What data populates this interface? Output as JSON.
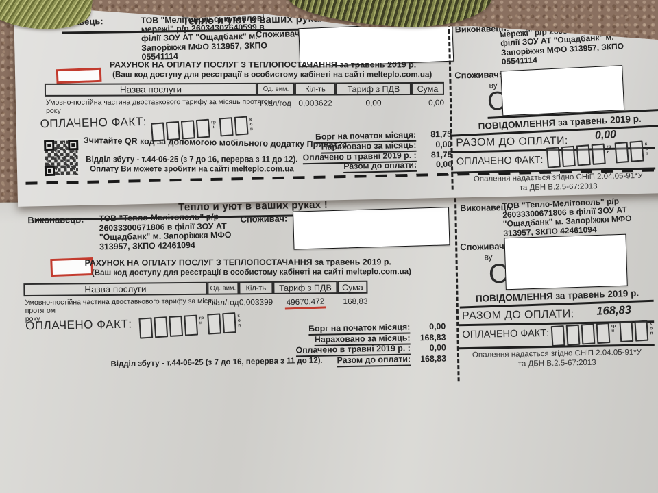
{
  "colors": {
    "annotation_red": "#c23b2e",
    "paper_top": "#dbdad7",
    "paper_bottom": "#d7d6d2",
    "carpet": "#8a7060",
    "fabric_olive": "#8f9455"
  },
  "bill_top": {
    "slogan": "Тепло и уют в ваших руках !",
    "executor_label": "Виконавець:",
    "executor_lines": [
      "ТОВ \"Мелітопольські теплові",
      "мережі\" р/р 26034302640599 в",
      "філії ЗОУ АТ \"Ощадбанк\" м.",
      "Запоріжжя МФО 313957, ЗКПО",
      "05541114"
    ],
    "consumer_label": "Споживач:",
    "invoice_title": "РАХУНОК НА ОПЛАТУ ПОСЛУГ З ТЕПЛОПОСТАЧАННЯ за травень 2019 р.",
    "invoice_subtitle": "(Ваш код доступу для реєстрації в особистому кабінеті на сайті melteplo.com.ua)",
    "table": {
      "col_service": "Назва послуги",
      "col_unit": "Од. вим.",
      "col_qty": "Кіл-ть",
      "col_tariff": "Тариф з ПДВ",
      "col_sum": "Сума",
      "row_service_line1": "Умовно-постійна частина двоставкового тарифу за місяць протягом",
      "row_service_line2": "року",
      "row_unit": "Гкал/год",
      "row_qty": "0,003622",
      "row_tariff": "0,00",
      "row_sum": "0,00"
    },
    "paid_fact_label": "ОПЛАЧЕНО ФАКТ:",
    "uah": "грн",
    "kop": "коп",
    "qr_hint": "Зчитайте QR код за допомогою мобільного додатку Приват24",
    "summary": [
      {
        "label": "Борг на початок місяця:",
        "value": "81,75"
      },
      {
        "label": "Нараховано за місяць:",
        "value": "0,00"
      },
      {
        "label": "Оплачено в травні 2019 р. :",
        "value": "81,75"
      },
      {
        "label": "Разом до оплати:",
        "value": "0,00"
      }
    ],
    "sales_dept_line": "Відділ збуту - т.44-06-25 (з 7 до 16, перерва з 11 до 12).",
    "pay_online_line": "Оплату Ви можете зробити на сайті melteplo.com.ua",
    "stub": {
      "notice_title": "ПОВІДОМЛЕННЯ за травень 2019 р.",
      "total_label": "РАЗОМ ДО ОПЛАТИ:",
      "total_value": "0,00",
      "consumer_partial": "ву",
      "big_letter": "С",
      "note_line1": "Опалення надається згідно СНіП 2.04.05-91*У",
      "note_line2": "та ДБН В.2.5-67:2013"
    }
  },
  "bill_bottom": {
    "slogan": "Тепло и уют в ваших руках !",
    "executor_label": "Виконавець:",
    "executor_lines": [
      "ТОВ \"Тепло-Мелітополь\" р/р",
      "26033300671806 в філії ЗОУ АТ",
      "\"Ощадбанк\" м. Запоріжжя МФО",
      "313957, ЗКПО 42461094"
    ],
    "consumer_label": "Споживач:",
    "invoice_title": "РАХУНОК НА ОПЛАТУ ПОСЛУГ З ТЕПЛОПОСТАЧАННЯ за травень 2019 р.",
    "invoice_subtitle": "(Ваш код доступу для реєстрації в особистому кабінеті на сайті melteplo.com.ua)",
    "table": {
      "col_service": "Назва послуги",
      "col_unit": "Од. вим.",
      "col_qty": "Кіл-ть",
      "col_tariff": "Тариф з ПДВ",
      "col_sum": "Сума",
      "row_service_line1": "Умовно-постійна частина двоставкового тарифу за місяць протягом",
      "row_service_line2": "року",
      "row_unit": "Гкал/год",
      "row_qty": "0,003399",
      "row_tariff": "49670,472",
      "row_sum": "168,83"
    },
    "paid_fact_label": "ОПЛАЧЕНО ФАКТ:",
    "uah": "грн",
    "kop": "коп",
    "summary": [
      {
        "label": "Борг на початок місяця:",
        "value": "0,00"
      },
      {
        "label": "Нараховано за місяць:",
        "value": "168,83"
      },
      {
        "label": "Оплачено в травні 2019 р. :",
        "value": "0,00"
      },
      {
        "label": "Разом до оплати:",
        "value": "168,83"
      }
    ],
    "sales_dept_line": "Відділ збуту - т.44-06-25 (з 7 до 16, перерва з 11 до 12).",
    "stub": {
      "notice_title": "ПОВІДОМЛЕННЯ за травень 2019 р.",
      "total_label": "РАЗОМ ДО ОПЛАТИ:",
      "total_value": "168,83",
      "consumer_partial": "ву",
      "big_letter": "С",
      "note_line1": "Опалення надається згідно СНіП 2.04.05-91*У",
      "note_line2": "та ДБН В.2.5-67:2013"
    }
  }
}
